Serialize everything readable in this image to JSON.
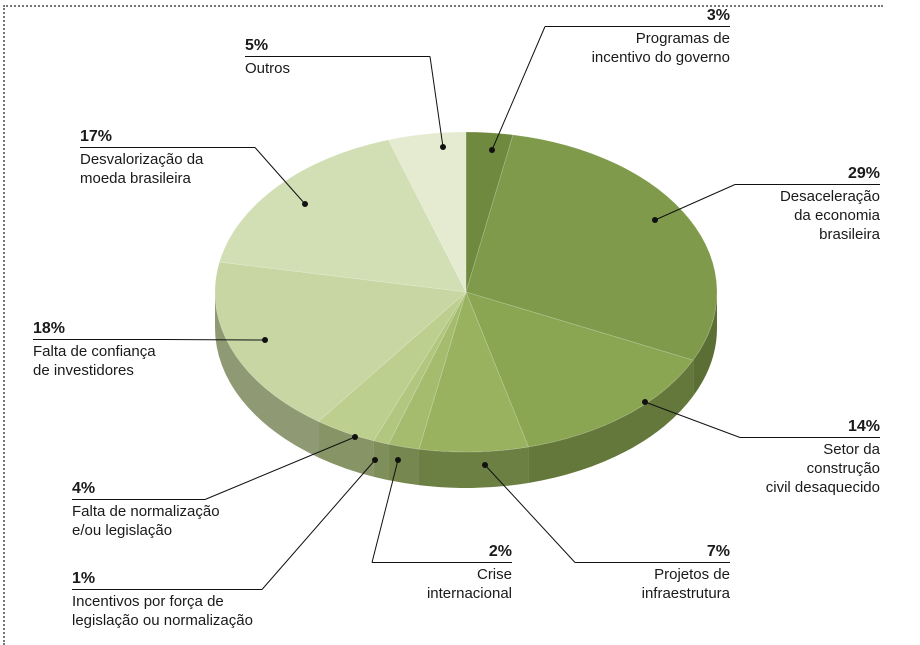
{
  "chart_data": {
    "type": "pie",
    "categories": [
      "Programas de\nincentivo do governo",
      "Desaceleração\nda economia\nbrasileira",
      "Setor da\nconstrução\ncivil desaquecido",
      "Projetos de\ninfraestrutura",
      "Crise\ninternacional",
      "Incentivos por força de\nlegislação ou normalização",
      "Falta de normalização\ne/ou legislação",
      "Falta de confiança\nde investidores",
      "Desvalorização da\nmoeda brasileira",
      "Outros"
    ],
    "values": [
      3,
      29,
      14,
      7,
      2,
      1,
      4,
      18,
      17,
      5
    ],
    "value_labels": [
      "3%",
      "29%",
      "14%",
      "7%",
      "2%",
      "1%",
      "4%",
      "18%",
      "17%",
      "5%"
    ],
    "colors": [
      "#6f8a3e",
      "#7f9a4a",
      "#8ba653",
      "#98b25f",
      "#a5bc6f",
      "#b1c67e",
      "#bccf8e",
      "#c7d6a2",
      "#d2dfb5",
      "#e4ebd1"
    ]
  }
}
